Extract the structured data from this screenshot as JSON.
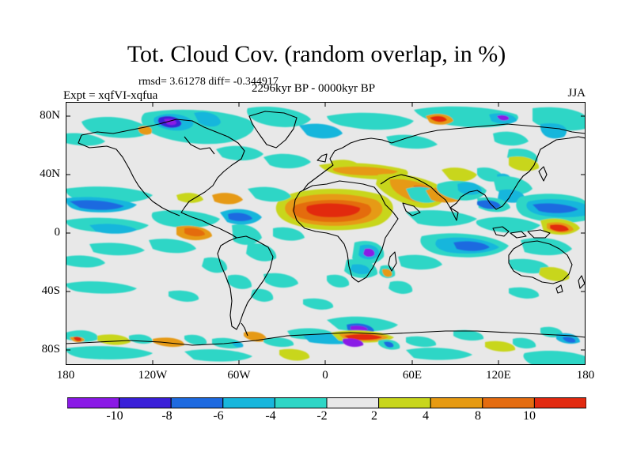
{
  "title": "Tot. Cloud Cov. (random overlap, in %)",
  "stats": "rmsd= 3.61278 diff= -0.344917",
  "experiment": "Expt = xqfVI-xqfua",
  "period": "2296kyr BP - 0000kyr BP",
  "season": "JJA",
  "y_axis_labels": [
    "80N",
    "40N",
    "0",
    "40S",
    "80S"
  ],
  "x_axis_labels": [
    "180",
    "120W",
    "60W",
    "0",
    "60E",
    "120E",
    "180"
  ],
  "colorbar": {
    "labels": [
      "-10",
      "-8",
      "-6",
      "-4",
      "-2",
      "2",
      "4",
      "8",
      "10"
    ],
    "colors": [
      "#8a1ae6",
      "#3a20d8",
      "#1e6ae0",
      "#18b6dc",
      "#2ed6c6",
      "#e8e8e8",
      "#c8d61c",
      "#e69a12",
      "#e46c10",
      "#e22a10"
    ]
  },
  "palette": {
    "no_change": "#e8e8e8",
    "coast": "#000000"
  }
}
